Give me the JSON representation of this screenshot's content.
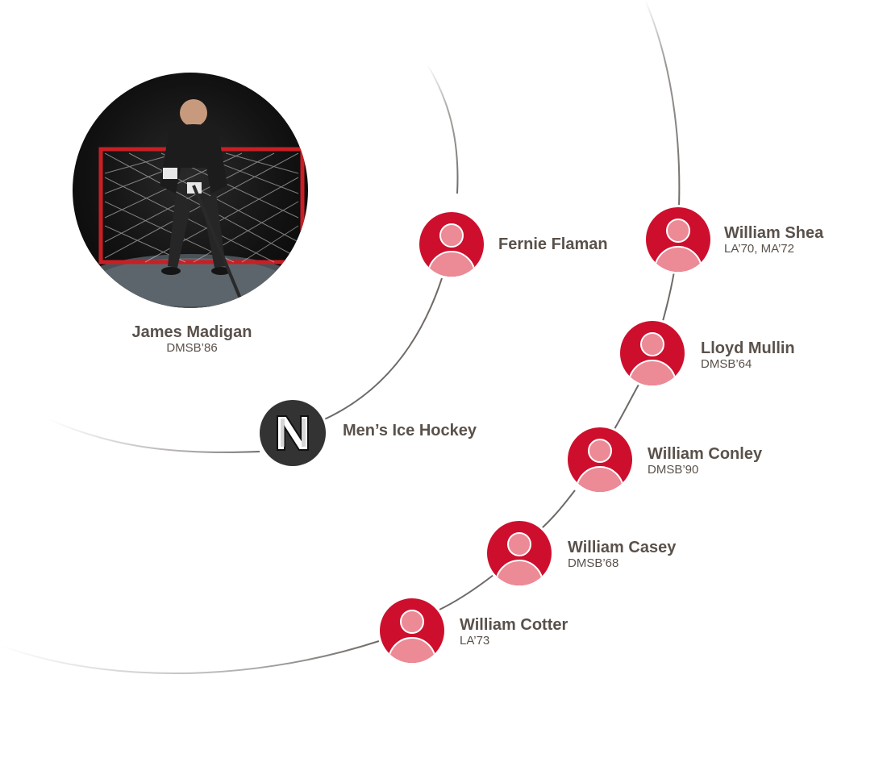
{
  "center_person": {
    "name": "James Madigan",
    "class_year": "DMSB’86"
  },
  "team": {
    "name": "Men’s Ice Hockey",
    "logo_letter": "N"
  },
  "inner_ring": [
    {
      "name": "Fernie Flaman",
      "class_year": ""
    }
  ],
  "outer_ring": [
    {
      "name": "William Shea",
      "class_year": "LA’70, MA’72"
    },
    {
      "name": "Lloyd Mullin",
      "class_year": "DMSB’64"
    },
    {
      "name": "William Conley",
      "class_year": "DMSB’90"
    },
    {
      "name": "William Casey",
      "class_year": "DMSB’68"
    },
    {
      "name": "William Cotter",
      "class_year": "LA’73"
    }
  ],
  "colors": {
    "avatar_red": "#cd0f2d",
    "avatar_pink": "#ec8a96",
    "text": "#5a514b",
    "badge": "#333333",
    "line": "#6f6a66"
  },
  "icons": {
    "person_avatar": "person-silhouette-icon",
    "team_logo": "block-letter-n-logo-icon"
  }
}
